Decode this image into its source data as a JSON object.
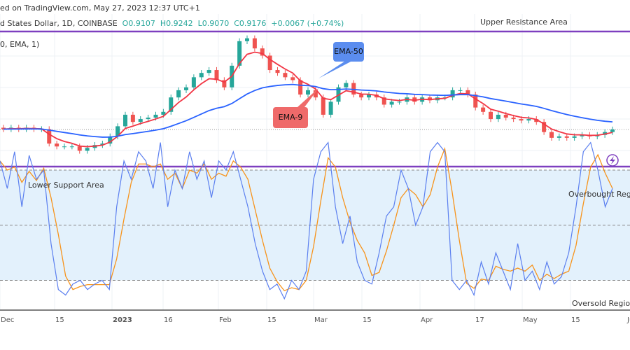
{
  "header": {
    "published": "ed on TradingView.com, May 27, 2023 12:37 UTC+1",
    "symbol": "d States Dollar, 1D, COINBASE",
    "open": "O0.9107",
    "high": "H0.9242",
    "low": "L0.9070",
    "close": "C0.9176",
    "change": "+0.0067 (+0.74%)",
    "indicator": "0, EMA, 1)"
  },
  "annotations": {
    "upper": "Upper Resistance Area",
    "lower": "Lower Support Area",
    "overbought": "Overbought Regi",
    "oversold": "Oversold Region",
    "ema50": "EMA-50",
    "ema9": "EMA-9"
  },
  "colors": {
    "up": "#26a69a",
    "down": "#ef5350",
    "ema9": "#f23645",
    "ema50": "#2962ff",
    "zone": "#7e3fbf",
    "k": "#5b7fef",
    "d": "#f7931a",
    "band": "#e3f1fc"
  },
  "icons": [
    "lightning-icon"
  ],
  "chart_data": [
    {
      "type": "candlestick",
      "title": "",
      "xlabel": "",
      "ylabel": "",
      "x_ticks": [
        "Dec",
        "15",
        "2023",
        "16",
        "Feb",
        "15",
        "Mar",
        "15",
        "Apr",
        "17",
        "May",
        "15",
        "Ju"
      ],
      "last_ohlc": {
        "open": 0.9107,
        "high": 0.9242,
        "low": 0.907,
        "close": 0.9176
      },
      "closes": [
        0.92,
        0.93,
        0.92,
        0.93,
        0.92,
        0.92,
        0.82,
        0.8,
        0.8,
        0.8,
        0.77,
        0.79,
        0.81,
        0.82,
        0.87,
        0.94,
        1.02,
        0.97,
        0.99,
        1.0,
        1.02,
        1.04,
        1.14,
        1.19,
        1.21,
        1.28,
        1.31,
        1.33,
        1.26,
        1.21,
        1.36,
        1.53,
        1.55,
        1.48,
        1.43,
        1.33,
        1.31,
        1.28,
        1.26,
        1.16,
        1.19,
        1.14,
        1.02,
        1.11,
        1.21,
        1.24,
        1.16,
        1.14,
        1.16,
        1.14,
        1.09,
        1.11,
        1.11,
        1.14,
        1.11,
        1.14,
        1.12,
        1.14,
        1.14,
        1.19,
        1.19,
        1.16,
        1.07,
        1.04,
        0.99,
        1.02,
        1.0,
        0.99,
        0.98,
        0.99,
        0.97,
        0.9,
        0.86,
        0.87,
        0.86,
        0.87,
        0.88,
        0.87,
        0.88,
        0.9,
        0.9176
      ],
      "series": [
        {
          "name": "EMA-9"
        },
        {
          "name": "EMA-50"
        }
      ],
      "horizontal_zones": [
        "Upper Resistance Area",
        "Lower Support Area"
      ]
    },
    {
      "type": "line",
      "title": "",
      "levels": [
        80,
        50,
        20
      ],
      "ylim": [
        0,
        100
      ],
      "k": [
        85,
        70,
        90,
        60,
        88,
        75,
        80,
        40,
        15,
        12,
        18,
        20,
        15,
        18,
        20,
        15,
        60,
        85,
        75,
        90,
        85,
        70,
        95,
        60,
        80,
        70,
        90,
        75,
        85,
        65,
        85,
        80,
        90,
        75,
        60,
        40,
        25,
        15,
        18,
        10,
        20,
        15,
        25,
        75,
        90,
        95,
        60,
        40,
        55,
        30,
        20,
        18,
        35,
        55,
        60,
        80,
        70,
        50,
        60,
        90,
        95,
        90,
        20,
        15,
        20,
        12,
        30,
        18,
        35,
        25,
        15,
        40,
        20,
        25,
        15,
        30,
        18,
        22,
        35,
        60,
        90,
        95,
        80,
        60,
        70
      ]
    }
  ]
}
